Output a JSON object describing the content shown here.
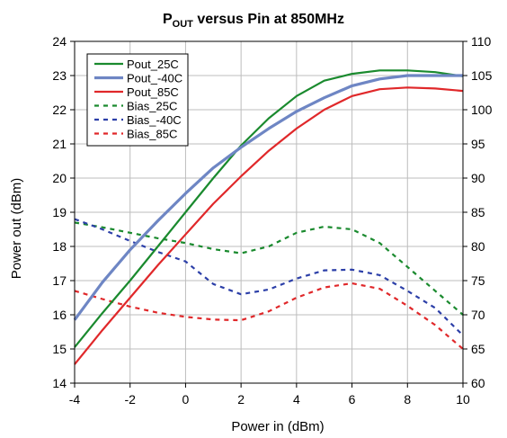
{
  "chart_data": {
    "type": "line",
    "title": "P",
    "title_sub": "OUT",
    "title_rest": " versus Pin at 850MHz",
    "xlabel": "Power in (dBm)",
    "ylabel": "Power out (dBm)",
    "xlim": [
      -4,
      10
    ],
    "ylim": [
      14,
      24
    ],
    "y2lim": [
      60,
      110
    ],
    "grid": true,
    "legend_position": "top-left",
    "x_ticks": [
      "-4",
      "-2",
      "0",
      "2",
      "4",
      "6",
      "8",
      "10"
    ],
    "y_ticks": [
      "14",
      "15",
      "16",
      "17",
      "18",
      "19",
      "20",
      "21",
      "22",
      "23",
      "24"
    ],
    "y2_ticks": [
      "60",
      "65",
      "70",
      "75",
      "80",
      "85",
      "90",
      "95",
      "100",
      "105",
      "110"
    ],
    "x": [
      -4,
      -3,
      -2,
      -1,
      0,
      1,
      2,
      3,
      4,
      5,
      6,
      7,
      8,
      9,
      10
    ],
    "series": [
      {
        "name": "Pout_25C",
        "axis": "left",
        "color": "#1a8a2e",
        "dash": false,
        "width": 2.2,
        "values": [
          15.05,
          16.05,
          17.0,
          18.0,
          19.0,
          20.0,
          20.95,
          21.75,
          22.4,
          22.85,
          23.05,
          23.15,
          23.15,
          23.1,
          22.98
        ]
      },
      {
        "name": "Pout_-40C",
        "axis": "left",
        "color": "#6e86c4",
        "dash": false,
        "width": 3.2,
        "values": [
          15.85,
          16.95,
          17.9,
          18.75,
          19.55,
          20.3,
          20.9,
          21.45,
          21.95,
          22.35,
          22.7,
          22.9,
          23.0,
          23.0,
          23.0
        ]
      },
      {
        "name": "Pout_85C",
        "axis": "left",
        "color": "#e0282a",
        "dash": false,
        "width": 2.2,
        "values": [
          14.55,
          15.55,
          16.5,
          17.45,
          18.35,
          19.25,
          20.05,
          20.8,
          21.45,
          22.0,
          22.4,
          22.6,
          22.65,
          22.62,
          22.55
        ]
      },
      {
        "name": "Bias_25C",
        "axis": "right",
        "color": "#1a8a2e",
        "dash": true,
        "width": 2.2,
        "values": [
          83.5,
          82.8,
          82.0,
          81.2,
          80.5,
          79.6,
          79.0,
          80.0,
          82.0,
          82.9,
          82.5,
          80.5,
          77.0,
          73.5,
          70.0
        ]
      },
      {
        "name": "Bias_-40C",
        "axis": "right",
        "color": "#2c3fa8",
        "dash": true,
        "width": 2.2,
        "values": [
          84.0,
          82.5,
          80.8,
          79.2,
          77.8,
          74.5,
          73.0,
          73.7,
          75.3,
          76.5,
          76.6,
          75.8,
          73.5,
          71.0,
          67.0
        ]
      },
      {
        "name": "Bias_85C",
        "axis": "right",
        "color": "#e0282a",
        "dash": true,
        "width": 2.2,
        "values": [
          73.5,
          72.3,
          71.2,
          70.3,
          69.7,
          69.3,
          69.2,
          70.5,
          72.5,
          74.0,
          74.6,
          73.8,
          71.3,
          68.5,
          65.0
        ]
      }
    ]
  }
}
